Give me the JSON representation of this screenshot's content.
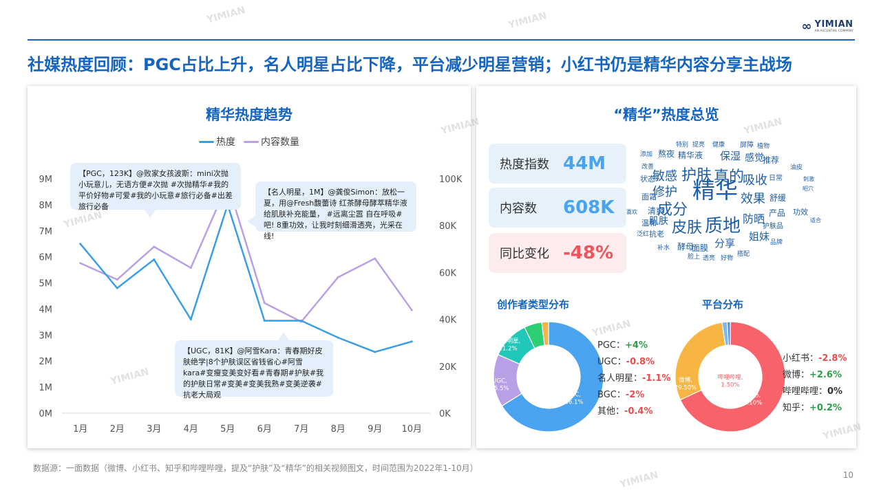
{
  "brand": {
    "name": "YIMIAN",
    "tagline": "AN ASCENTIAL COMPANY"
  },
  "headline": "社媒热度回顾：PGC占比上升，名人明星占比下降，平台减少明星营销；小红书仍是精华内容分享主战场",
  "left_panel": {
    "title": "精华热度趋势",
    "legend": [
      "热度",
      "内容数量"
    ],
    "callouts": {
      "pgc": "【PGC，123K】@败家女孩波斯：mini次抛小玩意儿，无语方便#次抛 #次抛精华#我的平价好物#可爱#我的小玩意#旅行必备#出差旅行必备",
      "celeb": "【名人明星，1M】@龚俊Simon：放松一夏，用@Fresh馥蕾诗 红茶酵母酵萃精华液给肌肤补充能量， #远离尘嚣 自在呼吸# 吧! 8重功效，让我时刻细滑透亮，光采在线!",
      "ugc": "【UGC，81K】@阿雪Kara：青春期好皮肤绝学|8个护肤误区省钱省心#阿雪kara#变瘦变美变好看#青春期#护肤#我的护肤日常#变美#变美我熟#变美逆袭#抗老大局观"
    }
  },
  "chart_data": [
    {
      "type": "line",
      "title": "精华热度趋势",
      "x": [
        "1月",
        "2月",
        "3月",
        "4月",
        "5月",
        "6月",
        "7月",
        "8月",
        "9月",
        "10月"
      ],
      "series": [
        {
          "name": "热度",
          "axis": "left",
          "color": "#3a9de8",
          "values": [
            6.5,
            4.8,
            5.9,
            3.6,
            8.0,
            3.55,
            3.55,
            2.9,
            2.35,
            2.75
          ]
        },
        {
          "name": "内容数量",
          "axis": "right",
          "color": "#b9a0e6",
          "values": [
            64,
            57,
            71,
            62,
            98,
            47,
            39,
            58,
            66,
            44
          ]
        }
      ],
      "y_left": {
        "ylim": [
          0,
          9
        ],
        "ticks": [
          "0M",
          "1M",
          "2M",
          "3M",
          "4M",
          "5M",
          "6M",
          "7M",
          "8M",
          "9M"
        ]
      },
      "y_right": {
        "ylim": [
          0,
          100
        ],
        "ticks": [
          "0K",
          "20K",
          "40K",
          "60K",
          "80K",
          "100K"
        ]
      },
      "legend_position": "top"
    },
    {
      "type": "pie",
      "title": "创作者类型分布",
      "labels": [
        "PGC",
        "UGC",
        "名人明星",
        "BGC",
        "其他"
      ],
      "values": [
        66.1,
        15.5,
        11.2,
        5.2,
        2.0
      ],
      "slice_labels": [
        "PGC,\n66.1%",
        "UGC,\n15.5%",
        "名人明星,\n11.2%",
        "",
        ""
      ],
      "colors": [
        "#4aa3ee",
        "#b9a0e6",
        "#1fc8b8",
        "#2ccf74",
        "#f5b34a"
      ],
      "changes": [
        {
          "label": "PGC：",
          "value": "+4%",
          "sign": "pos"
        },
        {
          "label": "UGC：",
          "value": "-0.8%",
          "sign": "neg"
        },
        {
          "label": "名人明星：",
          "value": "-1.1%",
          "sign": "neg"
        },
        {
          "label": "BGC：",
          "value": "-2%",
          "sign": "neg"
        },
        {
          "label": "其他：",
          "value": "-0.4%",
          "sign": "neg"
        }
      ]
    },
    {
      "type": "pie",
      "title": "平台分布",
      "labels": [
        "小红书",
        "微博",
        "哔哩哔哩",
        "知乎"
      ],
      "values": [
        68.1,
        29.5,
        1.5,
        0.9
      ],
      "slice_labels": [
        "小红书,\n68.10%",
        "微博,\n29.50%",
        "哔哩哔哩,\n1.50%",
        "知乎,\n0.90%"
      ],
      "colors": [
        "#f8626a",
        "#f7b544",
        "#7eb8ef",
        "#4a8fe0"
      ],
      "changes": [
        {
          "label": "小红书：",
          "value": "-2.8%",
          "sign": "neg"
        },
        {
          "label": "微博：",
          "value": "+2.6%",
          "sign": "pos"
        },
        {
          "label": "哔哩哔哩：",
          "value": "0%",
          "sign": "zero"
        },
        {
          "label": "知乎：",
          "value": "+0.2%",
          "sign": "pos"
        }
      ]
    }
  ],
  "right_panel": {
    "title": "“精华”热度总览",
    "kpis": [
      {
        "label": "热度指数",
        "value": "44M",
        "bg": "#e6f1fb",
        "color": "#4aa3ee"
      },
      {
        "label": "内容数",
        "value": "608K",
        "bg": "#e6f1fb",
        "color": "#4aa3ee"
      },
      {
        "label": "同比变化",
        "value": "-48%",
        "bg": "#fdeced",
        "color": "#f0555e"
      }
    ],
    "word_cloud": [
      "特别",
      "提亮",
      "健康",
      "屏障",
      "植物",
      "添加",
      "熬夜",
      "精华液",
      "改善",
      "保湿",
      "感觉",
      "推荐",
      "油皮",
      "状态",
      "敏感",
      "护肤",
      "真的",
      "吸收",
      "日常",
      "刺激",
      "昭穴",
      "面霜",
      "修护",
      "精华",
      "效果",
      "舒缓",
      "喜欢",
      "清爽",
      "成分",
      "功效",
      "产品",
      "适合",
      "温和",
      "肌肤",
      "皮肤",
      "质地",
      "防晒",
      "护肤品",
      "泛红",
      "抗老",
      "姐妹",
      "品牌",
      "补水",
      "酵母",
      "面膜",
      "分享",
      "脸上",
      "透亮",
      "好物",
      "搭配"
    ]
  },
  "footnote": "数据源：一面数据（微博、小红书、知乎和哔哩哔哩，提及“护肤”及“精华”的相关视频图文，时间范围为2022年1-10月）",
  "page_number": "10"
}
